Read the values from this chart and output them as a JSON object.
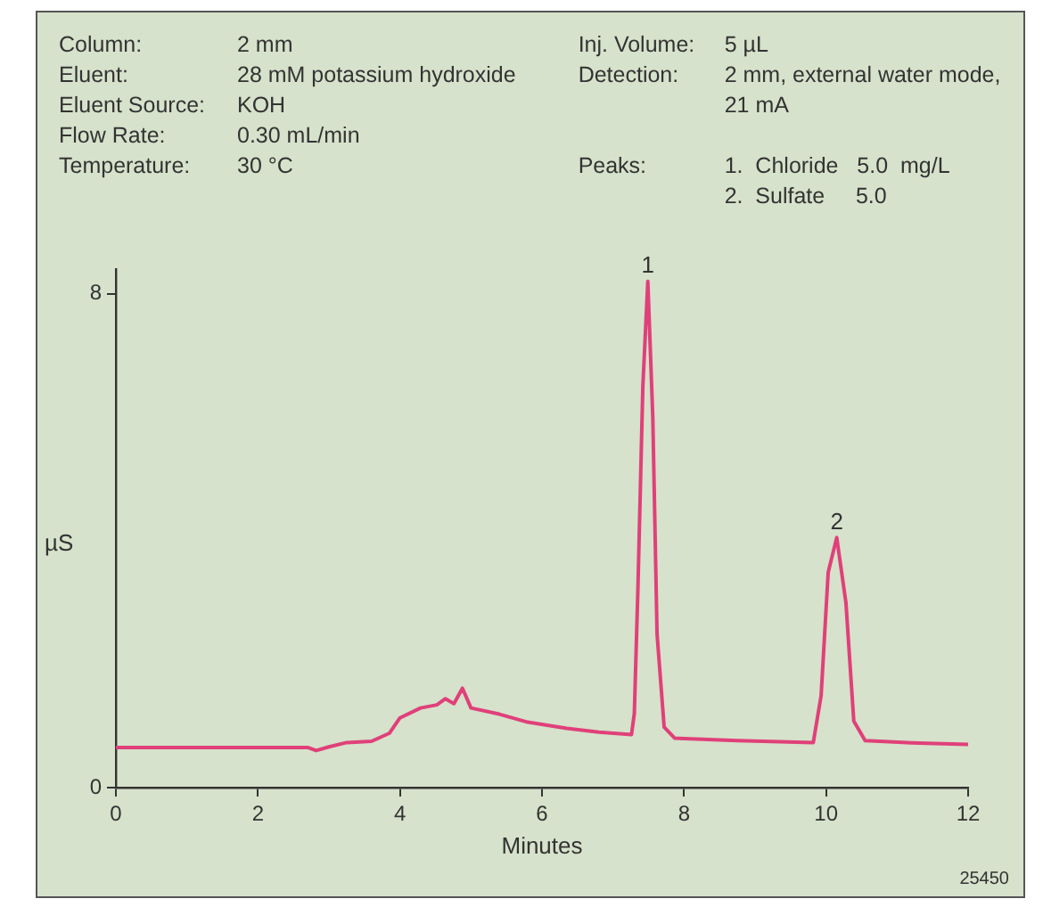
{
  "chart_data": {
    "type": "line",
    "xlabel": "Minutes",
    "ylabel": "µS",
    "annotations": [
      "Column: 2 mm",
      "Eluent: 28 mM potassium hydroxide",
      "Eluent Source: KOH",
      "Flow Rate: 0.30 mL/min",
      "Temperature: 30 °C",
      "Inj. Volume: 5 µL",
      "Detection: 2 mm, external water mode, 21 mA",
      "Peaks: 1.  Chloride   5.0  mg/L",
      "2.  Sulfate     5.0",
      {
        "text": "1",
        "x": 7.49,
        "y": 8.2
      },
      {
        "text": "2",
        "x": 10.15,
        "y": 4.05
      },
      "25450"
    ],
    "series": [
      {
        "color": "#e0407a",
        "x": [
          0,
          1,
          2,
          2.7,
          2.82,
          3.0,
          3.25,
          3.6,
          3.85,
          4.0,
          4.29,
          4.52,
          4.64,
          4.76,
          4.88,
          5.0,
          5.4,
          5.8,
          6.35,
          6.8,
          7.26,
          7.3,
          7.35,
          7.42,
          7.49,
          7.56,
          7.62,
          7.72,
          7.87,
          8.75,
          9.82,
          9.93,
          10.03,
          10.15,
          10.28,
          10.39,
          10.55,
          11.3,
          12
        ],
        "values": [
          0.65,
          0.65,
          0.65,
          0.65,
          0.6,
          0.66,
          0.73,
          0.75,
          0.88,
          1.13,
          1.29,
          1.34,
          1.44,
          1.36,
          1.61,
          1.29,
          1.19,
          1.06,
          0.96,
          0.9,
          0.86,
          1.2,
          3.2,
          6.5,
          8.2,
          6.0,
          2.49,
          0.98,
          0.8,
          0.76,
          0.73,
          1.49,
          3.49,
          4.05,
          2.99,
          1.08,
          0.76,
          0.72,
          0.7
        ]
      }
    ],
    "xlim": [
      0,
      12
    ],
    "xticks": [
      0,
      2,
      4,
      6,
      8,
      10,
      12
    ],
    "ylim": [
      0,
      8.4
    ],
    "yticks": [
      0,
      8
    ],
    "grid": false,
    "legend": false,
    "marker": "none",
    "line_style": "solid"
  }
}
